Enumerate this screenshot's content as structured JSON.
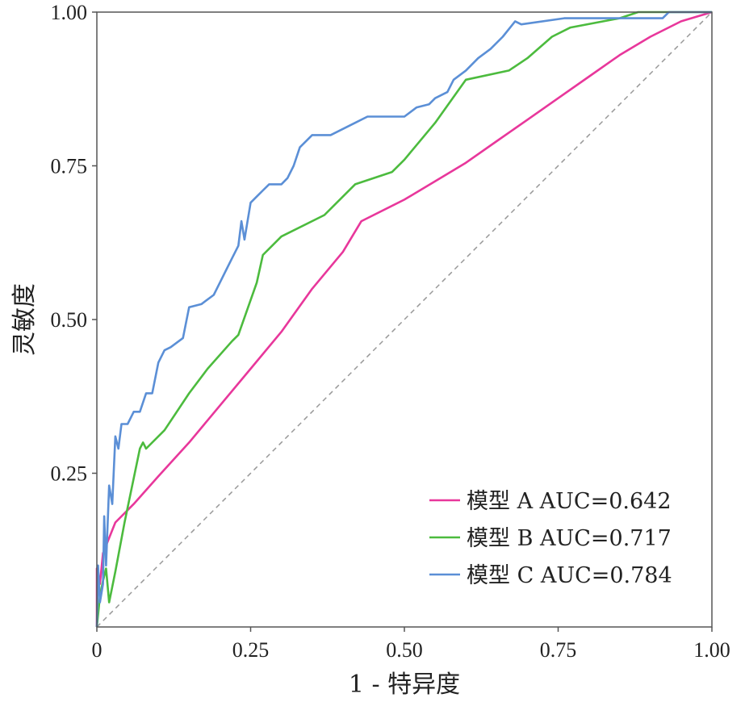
{
  "chart_data": {
    "type": "line",
    "title": "",
    "xlabel": "1 - 特异度",
    "ylabel": "灵敏度",
    "xlim": [
      0,
      1
    ],
    "ylim": [
      0,
      1
    ],
    "xticks": [
      {
        "value": 0,
        "label": "0"
      },
      {
        "value": 0.25,
        "label": "0.25"
      },
      {
        "value": 0.5,
        "label": "0.50"
      },
      {
        "value": 0.75,
        "label": "0.75"
      },
      {
        "value": 1,
        "label": "1.00"
      }
    ],
    "yticks": [
      {
        "value": 0.25,
        "label": "0.25"
      },
      {
        "value": 0.5,
        "label": "0.50"
      },
      {
        "value": 0.75,
        "label": "0.75"
      },
      {
        "value": 1,
        "label": "1.00"
      }
    ],
    "legend_position": "bottom-right",
    "reference_line": {
      "x": [
        0,
        1
      ],
      "y": [
        0,
        1
      ],
      "color": "#999999",
      "style": "dashed"
    },
    "series": [
      {
        "name": "模型 A AUC=0.642",
        "color": "#e8379b",
        "points": [
          [
            0,
            0
          ],
          [
            0,
            0.095
          ],
          [
            0.005,
            0.07
          ],
          [
            0.01,
            0.12
          ],
          [
            0.03,
            0.17
          ],
          [
            0.06,
            0.2
          ],
          [
            0.1,
            0.245
          ],
          [
            0.15,
            0.3
          ],
          [
            0.2,
            0.36
          ],
          [
            0.25,
            0.42
          ],
          [
            0.3,
            0.48
          ],
          [
            0.35,
            0.55
          ],
          [
            0.4,
            0.61
          ],
          [
            0.43,
            0.66
          ],
          [
            0.5,
            0.695
          ],
          [
            0.55,
            0.725
          ],
          [
            0.6,
            0.755
          ],
          [
            0.65,
            0.79
          ],
          [
            0.7,
            0.825
          ],
          [
            0.75,
            0.86
          ],
          [
            0.8,
            0.895
          ],
          [
            0.85,
            0.93
          ],
          [
            0.9,
            0.96
          ],
          [
            0.95,
            0.985
          ],
          [
            1,
            1
          ]
        ]
      },
      {
        "name": "模型 B AUC=0.717",
        "color": "#4cbb3e",
        "points": [
          [
            0,
            0
          ],
          [
            0.005,
            0.05
          ],
          [
            0.01,
            0.075
          ],
          [
            0.015,
            0.095
          ],
          [
            0.02,
            0.04
          ],
          [
            0.03,
            0.09
          ],
          [
            0.045,
            0.17
          ],
          [
            0.07,
            0.29
          ],
          [
            0.075,
            0.3
          ],
          [
            0.08,
            0.29
          ],
          [
            0.11,
            0.32
          ],
          [
            0.15,
            0.38
          ],
          [
            0.18,
            0.42
          ],
          [
            0.22,
            0.465
          ],
          [
            0.23,
            0.475
          ],
          [
            0.26,
            0.56
          ],
          [
            0.27,
            0.605
          ],
          [
            0.3,
            0.635
          ],
          [
            0.37,
            0.67
          ],
          [
            0.42,
            0.72
          ],
          [
            0.48,
            0.74
          ],
          [
            0.5,
            0.76
          ],
          [
            0.55,
            0.82
          ],
          [
            0.6,
            0.89
          ],
          [
            0.67,
            0.905
          ],
          [
            0.7,
            0.925
          ],
          [
            0.74,
            0.96
          ],
          [
            0.77,
            0.975
          ],
          [
            0.85,
            0.99
          ],
          [
            0.88,
            1
          ],
          [
            1,
            1
          ]
        ]
      },
      {
        "name": "模型 C AUC=0.784",
        "color": "#5b8fd6",
        "points": [
          [
            0,
            0
          ],
          [
            0.002,
            0.1
          ],
          [
            0.005,
            0.04
          ],
          [
            0.01,
            0.07
          ],
          [
            0.012,
            0.18
          ],
          [
            0.015,
            0.1
          ],
          [
            0.02,
            0.23
          ],
          [
            0.025,
            0.2
          ],
          [
            0.03,
            0.31
          ],
          [
            0.035,
            0.29
          ],
          [
            0.04,
            0.33
          ],
          [
            0.05,
            0.33
          ],
          [
            0.06,
            0.35
          ],
          [
            0.07,
            0.35
          ],
          [
            0.08,
            0.38
          ],
          [
            0.09,
            0.38
          ],
          [
            0.1,
            0.43
          ],
          [
            0.11,
            0.45
          ],
          [
            0.12,
            0.455
          ],
          [
            0.14,
            0.47
          ],
          [
            0.15,
            0.52
          ],
          [
            0.17,
            0.525
          ],
          [
            0.19,
            0.54
          ],
          [
            0.2,
            0.56
          ],
          [
            0.21,
            0.58
          ],
          [
            0.22,
            0.6
          ],
          [
            0.23,
            0.62
          ],
          [
            0.235,
            0.66
          ],
          [
            0.24,
            0.63
          ],
          [
            0.25,
            0.69
          ],
          [
            0.26,
            0.7
          ],
          [
            0.27,
            0.71
          ],
          [
            0.28,
            0.72
          ],
          [
            0.3,
            0.72
          ],
          [
            0.31,
            0.73
          ],
          [
            0.32,
            0.75
          ],
          [
            0.33,
            0.78
          ],
          [
            0.35,
            0.8
          ],
          [
            0.38,
            0.8
          ],
          [
            0.4,
            0.81
          ],
          [
            0.42,
            0.82
          ],
          [
            0.44,
            0.83
          ],
          [
            0.5,
            0.83
          ],
          [
            0.52,
            0.845
          ],
          [
            0.54,
            0.85
          ],
          [
            0.55,
            0.86
          ],
          [
            0.57,
            0.87
          ],
          [
            0.58,
            0.89
          ],
          [
            0.6,
            0.905
          ],
          [
            0.62,
            0.925
          ],
          [
            0.64,
            0.94
          ],
          [
            0.66,
            0.96
          ],
          [
            0.68,
            0.985
          ],
          [
            0.69,
            0.98
          ],
          [
            0.76,
            0.99
          ],
          [
            0.92,
            0.99
          ],
          [
            0.93,
            1
          ],
          [
            1,
            1
          ]
        ]
      }
    ]
  }
}
